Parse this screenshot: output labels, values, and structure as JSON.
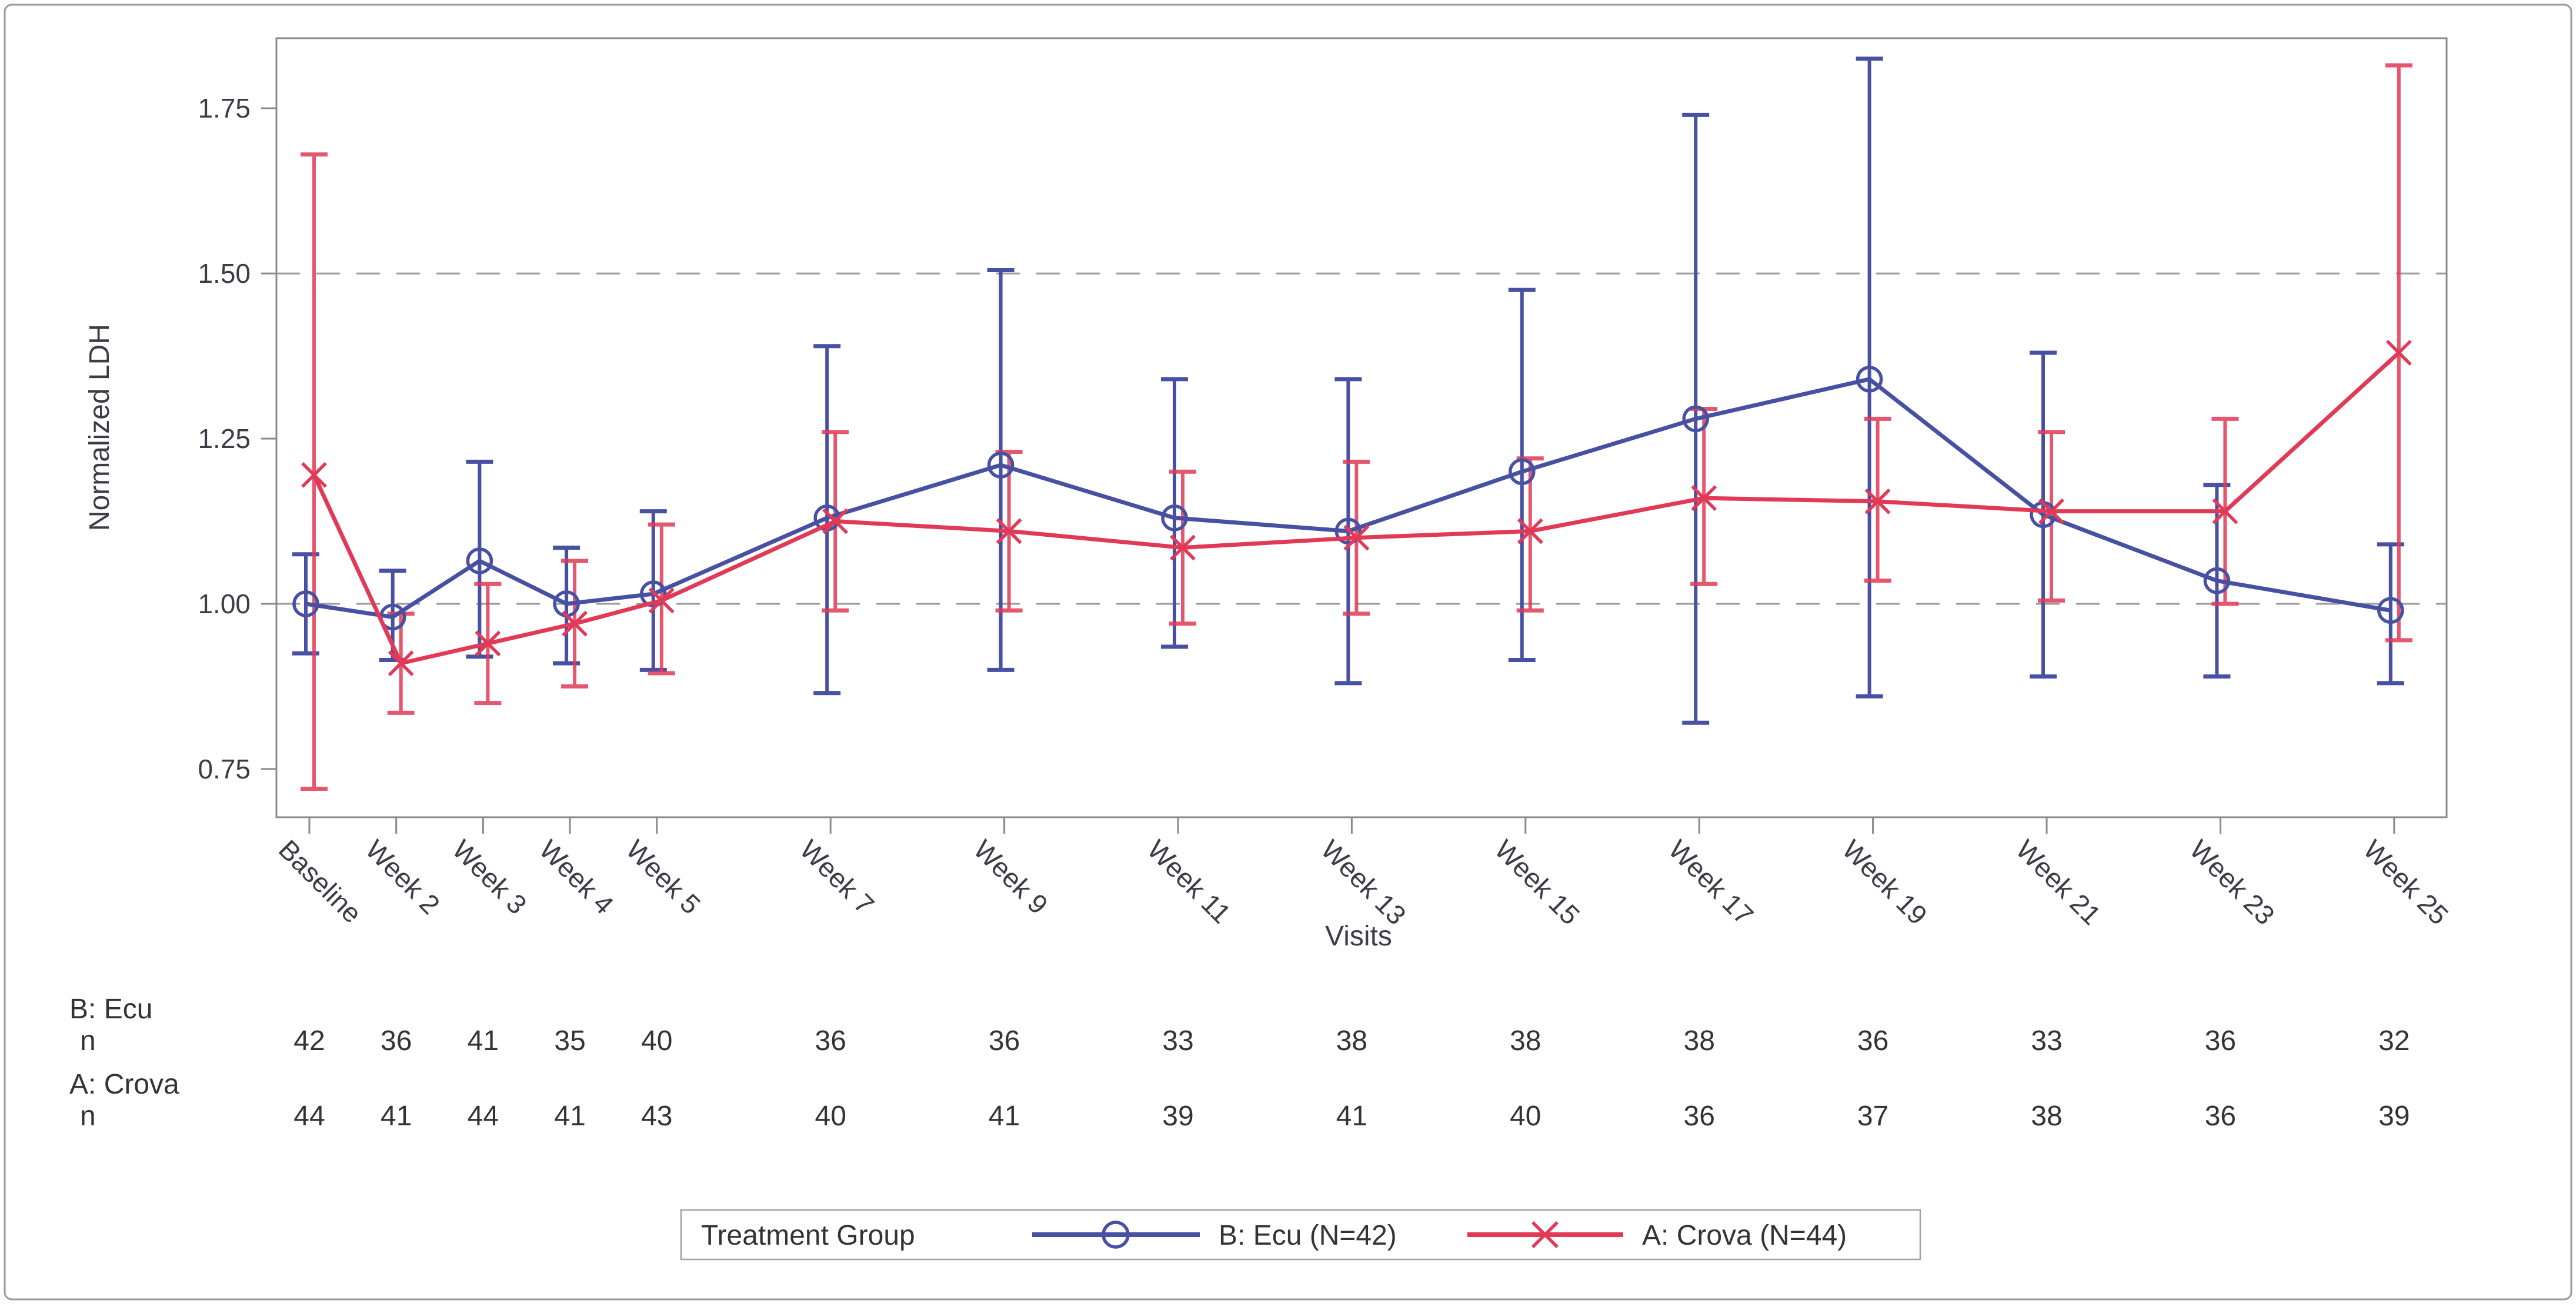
{
  "figure": {
    "background": "#ffffff",
    "frame_color": "#999999",
    "wall_color": "#8a8a8a",
    "grid_color": "#9a9a9a",
    "text_color": "#3c3c46"
  },
  "chart_data": {
    "type": "line",
    "title": "",
    "xlabel": "Visits",
    "ylabel": "Normalized LDH",
    "y_ticks": [
      "0.75",
      "1.00",
      "1.25",
      "1.50",
      "1.75"
    ],
    "y_tick_values": [
      0.75,
      1.0,
      1.25,
      1.5,
      1.75
    ],
    "ylim": [
      0.677,
      1.856
    ],
    "grid": "reference-lines-only",
    "reference_lines": [
      1.0,
      1.5
    ],
    "legend_position": "bottom",
    "legend_title": "Treatment Group",
    "categories": [
      "Baseline",
      "Week 2",
      "Week 3",
      "Week 4",
      "Week 5",
      "Week 7",
      "Week 9",
      "Week 11",
      "Week 13",
      "Week 15",
      "Week 17",
      "Week 19",
      "Week 21",
      "Week 23",
      "Week 25"
    ],
    "week_positions": [
      1,
      2,
      3,
      4,
      5,
      7,
      9,
      11,
      13,
      15,
      17,
      19,
      21,
      23,
      25
    ],
    "series": [
      {
        "name": "B: Ecu (N=42)",
        "short_name": "B: Ecu",
        "color": "#4750a3",
        "marker": "circle",
        "values": [
          1.0,
          0.98,
          1.065,
          1.0,
          1.015,
          1.13,
          1.21,
          1.13,
          1.11,
          1.2,
          1.28,
          1.34,
          1.135,
          1.035,
          0.99
        ],
        "lower": [
          0.925,
          0.915,
          0.92,
          0.91,
          0.9,
          0.865,
          0.9,
          0.935,
          0.88,
          0.915,
          0.82,
          0.86,
          0.89,
          0.89,
          0.88
        ],
        "upper": [
          1.075,
          1.05,
          1.215,
          1.085,
          1.14,
          1.39,
          1.505,
          1.34,
          1.34,
          1.475,
          1.74,
          1.825,
          1.38,
          1.18,
          1.09
        ],
        "n": [
          42,
          36,
          41,
          35,
          40,
          36,
          36,
          33,
          38,
          38,
          38,
          36,
          33,
          36,
          32
        ]
      },
      {
        "name": "A: Crova (N=44)",
        "short_name": "A: Crova",
        "color": "#e13a56",
        "marker": "x",
        "values": [
          1.195,
          0.91,
          0.94,
          0.97,
          1.005,
          1.125,
          1.11,
          1.085,
          1.1,
          1.11,
          1.16,
          1.155,
          1.14,
          1.14,
          1.38
        ],
        "lower": [
          0.72,
          0.835,
          0.85,
          0.875,
          0.895,
          0.99,
          0.99,
          0.97,
          0.985,
          0.99,
          1.03,
          1.035,
          1.005,
          1.0,
          0.945
        ],
        "upper": [
          1.68,
          0.985,
          1.03,
          1.065,
          1.12,
          1.26,
          1.23,
          1.2,
          1.215,
          1.22,
          1.295,
          1.28,
          1.26,
          1.28,
          1.815
        ],
        "n": [
          44,
          41,
          44,
          41,
          43,
          40,
          41,
          39,
          41,
          40,
          36,
          37,
          38,
          36,
          39
        ]
      }
    ]
  },
  "table": {
    "n_label": "n"
  }
}
